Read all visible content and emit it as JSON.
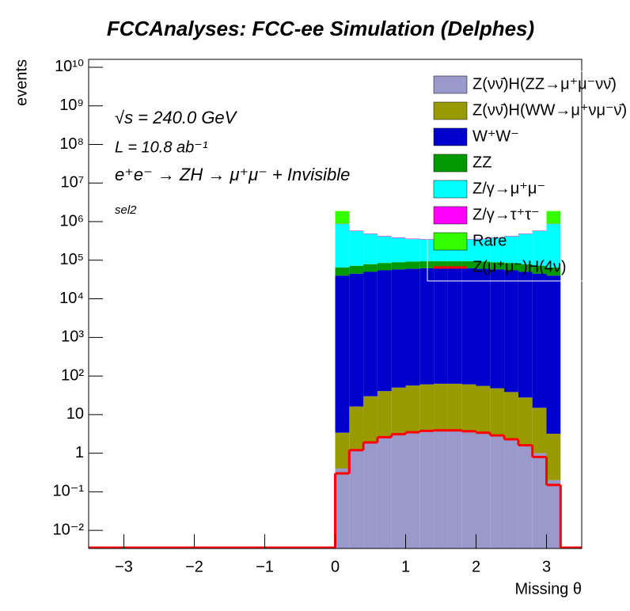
{
  "chart_data": {
    "type": "stacked_histogram",
    "title": "FCCAnalyses: FCC-ee Simulation (Delphes)",
    "x_label": "Missing θ",
    "y_label": "events",
    "annotations": [
      "√s = 240.0 GeV",
      "L = 10.8 ab⁻¹",
      "e⁺e⁻ → ZH → μ⁺μ⁻ + Invisible",
      "sel2"
    ],
    "log_y": true,
    "bins": [
      0,
      0.2,
      0.4,
      0.6,
      0.8,
      1.0,
      1.2,
      1.4,
      1.6,
      1.8,
      2.0,
      2.2,
      2.4,
      2.6,
      2.8,
      3.0,
      3.2
    ],
    "xlim": [
      -3.5,
      3.5
    ],
    "xticks": [
      {
        "value": -3,
        "label": "−3"
      },
      {
        "value": -2,
        "label": "−2"
      },
      {
        "value": -1,
        "label": "−1"
      },
      0,
      1,
      2,
      3
    ],
    "ylim": [
      0.0034,
      16000000000
    ],
    "yticks": [
      {
        "value": 0.01,
        "label": "10⁻²"
      },
      {
        "value": 0.1,
        "label": "10⁻¹"
      },
      1,
      10,
      {
        "value": 100,
        "label": "10²"
      },
      {
        "value": 1000,
        "label": "10³"
      },
      {
        "value": 10000,
        "label": "10⁴"
      },
      {
        "value": 100000,
        "label": "10⁵"
      },
      {
        "value": 1000000,
        "label": "10⁶"
      },
      {
        "value": 10000000,
        "label": "10⁷"
      },
      {
        "value": 100000000,
        "label": "10⁸"
      },
      {
        "value": 1000000000,
        "label": "10⁹"
      },
      {
        "value": 10000000000,
        "label": "10¹⁰"
      }
    ],
    "series": [
      {
        "name": "Z(νν̄)H(ZZ→μ⁺μ⁻νν̄)",
        "color": "#9999cc",
        "values": [
          0.4,
          1.2,
          1.9,
          2.6,
          3.1,
          3.6,
          3.8,
          4,
          4,
          3.8,
          3.4,
          3,
          2.4,
          1.7,
          1.0,
          0.2
        ]
      },
      {
        "name": "Z(νν̄)H(WW→μ⁺νμ⁻ν̄)",
        "color": "#999900",
        "values": [
          3,
          15,
          28,
          38,
          47,
          53,
          57,
          59,
          59,
          57,
          52,
          45,
          36,
          26,
          14,
          3
        ]
      },
      {
        "name": "W⁺W⁻",
        "color": "#0000cc",
        "values": [
          40000,
          45000,
          50000,
          55000,
          58000,
          60000,
          62000,
          62000,
          62000,
          62000,
          60000,
          58000,
          55000,
          50000,
          45000,
          40000
        ]
      },
      {
        "name": "ZZ",
        "color": "#009900",
        "values": [
          25000,
          27000,
          29000,
          30000,
          31000,
          32000,
          32000,
          32000,
          32000,
          32000,
          32000,
          31000,
          30000,
          29000,
          27000,
          25000
        ]
      },
      {
        "name": "Z/γ→μ⁺μ⁻",
        "color": "#00ffff",
        "values": [
          800000,
          500000,
          400000,
          330000,
          290000,
          260000,
          250000,
          240000,
          240000,
          250000,
          260000,
          290000,
          330000,
          400000,
          500000,
          800000
        ]
      },
      {
        "name": "Z/γ→τ⁺τ⁻",
        "color": "#ff00ff",
        "values": [
          15000,
          13000,
          12000,
          11000,
          10000,
          10000,
          9000,
          9000,
          9000,
          9000,
          10000,
          10000,
          11000,
          12000,
          13000,
          15000
        ]
      },
      {
        "name": "Rare",
        "color": "#33ff00",
        "values": [
          1000000,
          3000,
          2000,
          1500,
          1200,
          1000,
          1000,
          1000,
          1000,
          1000,
          1000,
          1200,
          1500,
          2000,
          3000,
          1000000
        ]
      }
    ],
    "overlay": {
      "name": "Z(μ⁺μ⁻)H(4ν)",
      "color": "#ff0000",
      "values": [
        0.3,
        1.2,
        1.9,
        2.6,
        3.1,
        3.5,
        3.8,
        3.9,
        3.9,
        3.7,
        3.4,
        2.9,
        2.3,
        1.6,
        0.8,
        0.15
      ]
    }
  }
}
